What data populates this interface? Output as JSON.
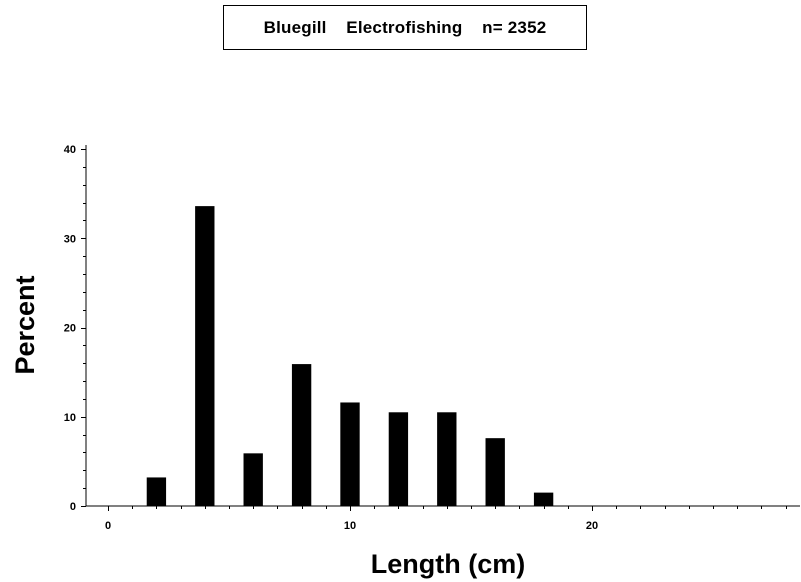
{
  "chart_data": {
    "type": "bar",
    "title": "Bluegill    Electrofishing    n= 2352",
    "xlabel": "Length  (cm)",
    "ylabel": "Percent",
    "xlim": [
      -1,
      28.5
    ],
    "ylim": [
      0,
      40
    ],
    "x_ticks": [
      0,
      10,
      20
    ],
    "y_ticks": [
      0,
      10,
      20,
      30,
      40
    ],
    "bar_width": 0.8,
    "x": [
      2,
      4,
      6,
      8,
      10,
      12,
      14,
      16,
      18
    ],
    "values": [
      3.2,
      33.6,
      5.9,
      15.9,
      11.6,
      10.5,
      10.5,
      7.6,
      1.5
    ],
    "bar_color": "#000000",
    "grid": false,
    "legend": "none"
  }
}
